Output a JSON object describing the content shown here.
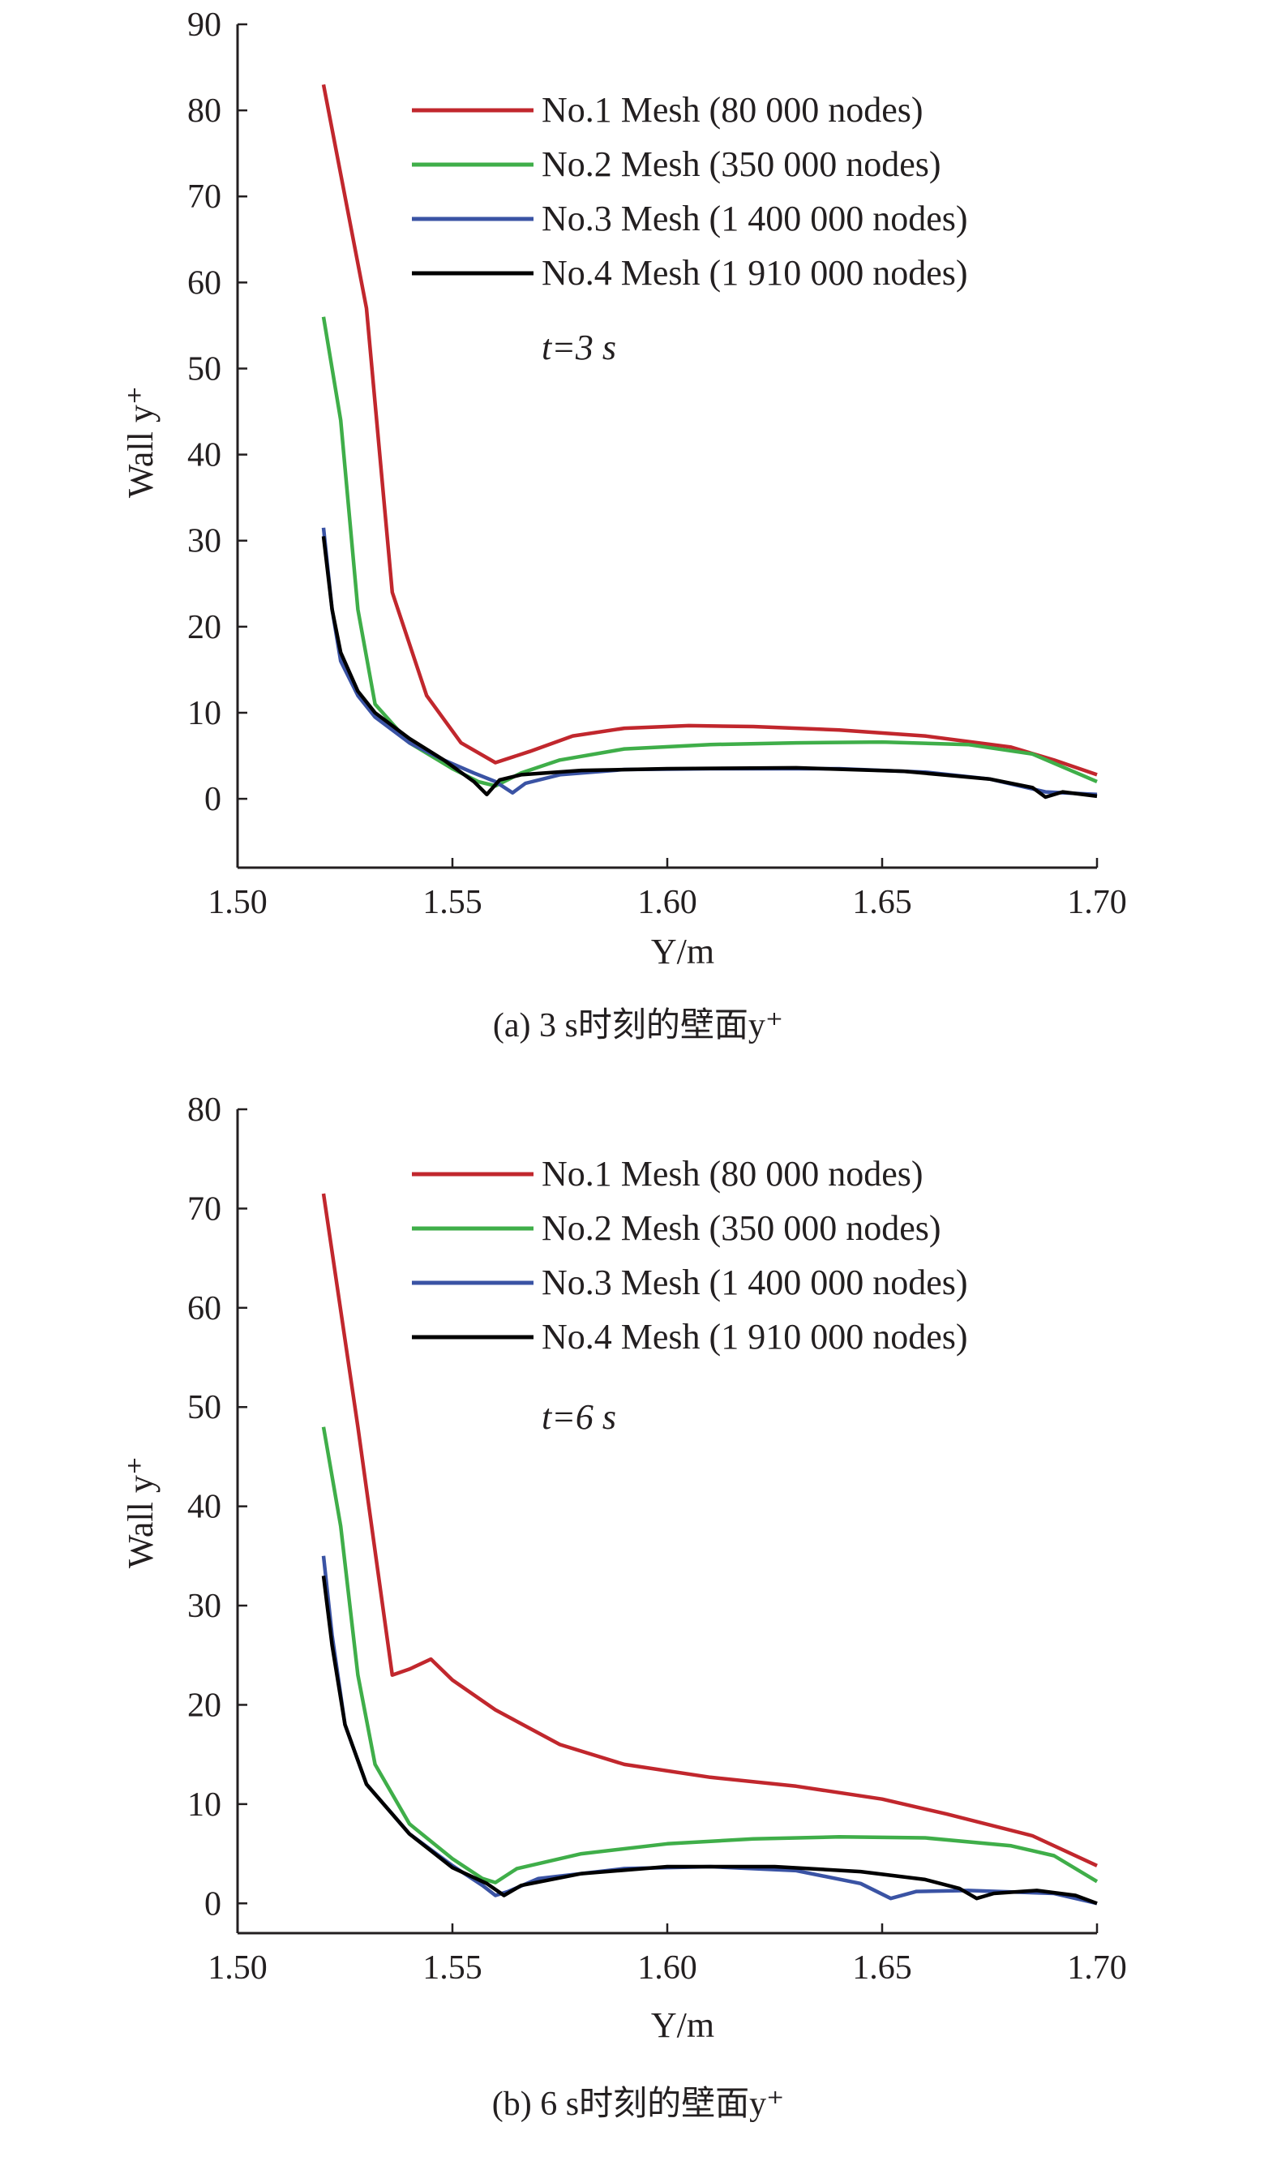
{
  "chart_data": [
    {
      "type": "line",
      "panel": "a",
      "caption": "(a) 3 s时刻的壁面y⁺",
      "xlabel": "Y/m",
      "ylabel": "Wall y⁺",
      "xlim": [
        1.5,
        1.7
      ],
      "ylim": [
        -8,
        90
      ],
      "xticks": [
        "1.50",
        "1.55",
        "1.60",
        "1.65",
        "1.70"
      ],
      "yticks": [
        "0",
        "10",
        "20",
        "30",
        "40",
        "50",
        "60",
        "70",
        "80",
        "90"
      ],
      "annotation": "t=3 s",
      "legend_position": "top-right",
      "series": [
        {
          "name": "No.1 Mesh (80 000 nodes)",
          "color": "#c1272d",
          "points": [
            [
              1.52,
              83
            ],
            [
              1.53,
              57
            ],
            [
              1.536,
              24
            ],
            [
              1.544,
              12
            ],
            [
              1.552,
              6.5
            ],
            [
              1.56,
              4.2
            ],
            [
              1.568,
              5.5
            ],
            [
              1.578,
              7.3
            ],
            [
              1.59,
              8.2
            ],
            [
              1.605,
              8.5
            ],
            [
              1.62,
              8.4
            ],
            [
              1.64,
              8.0
            ],
            [
              1.66,
              7.3
            ],
            [
              1.68,
              6.0
            ],
            [
              1.69,
              4.5
            ],
            [
              1.7,
              2.8
            ]
          ]
        },
        {
          "name": "No.2 Mesh (350 000 nodes)",
          "color": "#3fae49",
          "points": [
            [
              1.52,
              56
            ],
            [
              1.524,
              44
            ],
            [
              1.528,
              22
            ],
            [
              1.532,
              11
            ],
            [
              1.54,
              6.5
            ],
            [
              1.55,
              3.5
            ],
            [
              1.556,
              2.0
            ],
            [
              1.56,
              1.5
            ],
            [
              1.566,
              3.0
            ],
            [
              1.575,
              4.5
            ],
            [
              1.59,
              5.8
            ],
            [
              1.61,
              6.3
            ],
            [
              1.63,
              6.5
            ],
            [
              1.65,
              6.6
            ],
            [
              1.67,
              6.3
            ],
            [
              1.685,
              5.2
            ],
            [
              1.7,
              2.0
            ]
          ]
        },
        {
          "name": "No.3 Mesh (1 400 000 nodes)",
          "color": "#3a53a4",
          "points": [
            [
              1.52,
              31.5
            ],
            [
              1.522,
              22
            ],
            [
              1.524,
              16
            ],
            [
              1.528,
              12
            ],
            [
              1.532,
              9.5
            ],
            [
              1.54,
              6.5
            ],
            [
              1.548,
              4.5
            ],
            [
              1.555,
              3.0
            ],
            [
              1.56,
              2.0
            ],
            [
              1.564,
              0.7
            ],
            [
              1.567,
              1.8
            ],
            [
              1.575,
              2.8
            ],
            [
              1.59,
              3.4
            ],
            [
              1.61,
              3.5
            ],
            [
              1.64,
              3.5
            ],
            [
              1.66,
              3.1
            ],
            [
              1.675,
              2.3
            ],
            [
              1.688,
              0.8
            ],
            [
              1.7,
              0.5
            ]
          ]
        },
        {
          "name": "No.4 Mesh (1 910 000 nodes)",
          "color": "#000000",
          "points": [
            [
              1.52,
              30.5
            ],
            [
              1.522,
              22
            ],
            [
              1.524,
              17
            ],
            [
              1.528,
              12.5
            ],
            [
              1.532,
              10
            ],
            [
              1.54,
              7.0
            ],
            [
              1.548,
              4.5
            ],
            [
              1.555,
              2.0
            ],
            [
              1.558,
              0.5
            ],
            [
              1.561,
              2.2
            ],
            [
              1.566,
              2.8
            ],
            [
              1.58,
              3.3
            ],
            [
              1.6,
              3.5
            ],
            [
              1.63,
              3.6
            ],
            [
              1.655,
              3.2
            ],
            [
              1.675,
              2.3
            ],
            [
              1.685,
              1.3
            ],
            [
              1.688,
              0.2
            ],
            [
              1.692,
              0.8
            ],
            [
              1.7,
              0.3
            ]
          ]
        }
      ]
    },
    {
      "type": "line",
      "panel": "b",
      "caption": "(b) 6 s时刻的壁面y⁺",
      "xlabel": "Y/m",
      "ylabel": "Wall y⁺",
      "xlim": [
        1.5,
        1.7
      ],
      "ylim": [
        -3,
        80
      ],
      "xticks": [
        "1.50",
        "1.55",
        "1.60",
        "1.65",
        "1.70"
      ],
      "yticks": [
        "0",
        "10",
        "20",
        "30",
        "40",
        "50",
        "60",
        "70",
        "80"
      ],
      "annotation": "t=6 s",
      "legend_position": "top-right",
      "series": [
        {
          "name": "No.1 Mesh (80 000 nodes)",
          "color": "#c1272d",
          "points": [
            [
              1.52,
              71.5
            ],
            [
              1.528,
              48
            ],
            [
              1.536,
              23
            ],
            [
              1.54,
              23.6
            ],
            [
              1.545,
              24.6
            ],
            [
              1.55,
              22.5
            ],
            [
              1.56,
              19.5
            ],
            [
              1.575,
              16
            ],
            [
              1.59,
              14
            ],
            [
              1.61,
              12.7
            ],
            [
              1.63,
              11.8
            ],
            [
              1.65,
              10.5
            ],
            [
              1.665,
              9.0
            ],
            [
              1.685,
              6.8
            ],
            [
              1.7,
              3.8
            ]
          ]
        },
        {
          "name": "No.2 Mesh (350 000 nodes)",
          "color": "#3fae49",
          "points": [
            [
              1.52,
              48
            ],
            [
              1.524,
              38
            ],
            [
              1.528,
              23
            ],
            [
              1.532,
              14
            ],
            [
              1.54,
              8.0
            ],
            [
              1.55,
              4.5
            ],
            [
              1.557,
              2.5
            ],
            [
              1.56,
              2.1
            ],
            [
              1.565,
              3.5
            ],
            [
              1.58,
              5.0
            ],
            [
              1.6,
              6.0
            ],
            [
              1.62,
              6.5
            ],
            [
              1.64,
              6.7
            ],
            [
              1.66,
              6.6
            ],
            [
              1.68,
              5.8
            ],
            [
              1.69,
              4.8
            ],
            [
              1.7,
              2.2
            ]
          ]
        },
        {
          "name": "No.3 Mesh (1 400 000 nodes)",
          "color": "#3a53a4",
          "points": [
            [
              1.52,
              35
            ],
            [
              1.522,
              27
            ],
            [
              1.525,
              18
            ],
            [
              1.53,
              12
            ],
            [
              1.54,
              7.0
            ],
            [
              1.55,
              3.8
            ],
            [
              1.557,
              1.8
            ],
            [
              1.56,
              0.8
            ],
            [
              1.563,
              1.2
            ],
            [
              1.57,
              2.5
            ],
            [
              1.59,
              3.5
            ],
            [
              1.61,
              3.7
            ],
            [
              1.63,
              3.3
            ],
            [
              1.645,
              2.0
            ],
            [
              1.652,
              0.5
            ],
            [
              1.658,
              1.2
            ],
            [
              1.67,
              1.3
            ],
            [
              1.69,
              1.0
            ],
            [
              1.7,
              0
            ]
          ]
        },
        {
          "name": "No.4 Mesh (1 910 000 nodes)",
          "color": "#000000",
          "points": [
            [
              1.52,
              33
            ],
            [
              1.522,
              26
            ],
            [
              1.525,
              18
            ],
            [
              1.53,
              12
            ],
            [
              1.54,
              7.0
            ],
            [
              1.55,
              3.6
            ],
            [
              1.558,
              2.0
            ],
            [
              1.562,
              0.8
            ],
            [
              1.566,
              1.8
            ],
            [
              1.58,
              3.0
            ],
            [
              1.6,
              3.7
            ],
            [
              1.625,
              3.7
            ],
            [
              1.645,
              3.2
            ],
            [
              1.66,
              2.4
            ],
            [
              1.668,
              1.5
            ],
            [
              1.672,
              0.5
            ],
            [
              1.676,
              1.0
            ],
            [
              1.686,
              1.3
            ],
            [
              1.695,
              0.8
            ],
            [
              1.7,
              0
            ]
          ]
        }
      ]
    }
  ]
}
